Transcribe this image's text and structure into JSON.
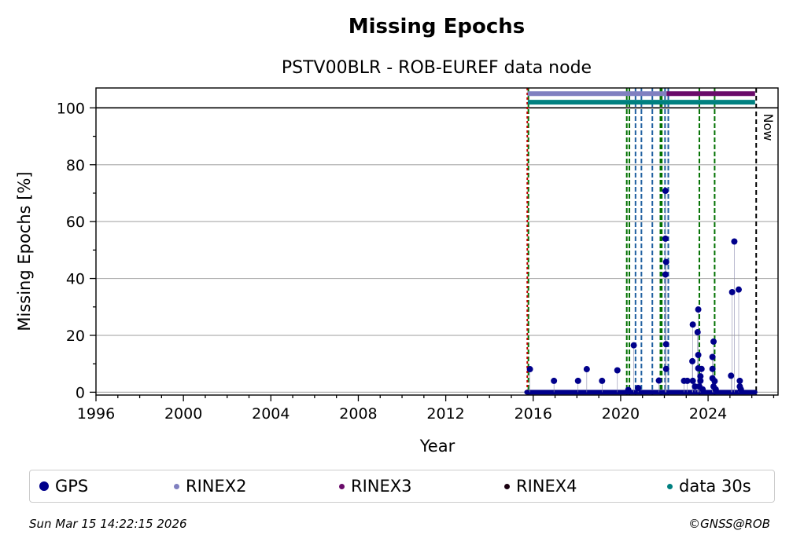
{
  "chart_data": {
    "type": "scatter",
    "title": "Missing Epochs",
    "subtitle": "PSTV00BLR - ROB-EUREF data node",
    "xlabel": "Year",
    "ylabel": "Missing Epochs [%]",
    "xlim": [
      1996,
      2027.2
    ],
    "ylim": [
      -1,
      107
    ],
    "x_ticks": [
      1996,
      2000,
      2004,
      2008,
      2012,
      2016,
      2020,
      2024
    ],
    "x_tick_labels": [
      "1996",
      "2000",
      "2004",
      "2008",
      "2012",
      "2016",
      "2020",
      "2024"
    ],
    "y_ticks": [
      0,
      20,
      40,
      60,
      80,
      100
    ],
    "y_tick_labels": [
      "0",
      "20",
      "40",
      "60",
      "80",
      "100"
    ],
    "grid": "horizontal",
    "legend_position": "below",
    "series": [
      {
        "name": "GPS",
        "color": "#00008b",
        "points": [
          [
            2015.85,
            8.1
          ],
          [
            2016.95,
            4.0
          ],
          [
            2018.05,
            4.0
          ],
          [
            2018.45,
            8.1
          ],
          [
            2019.15,
            4.0
          ],
          [
            2019.85,
            7.7
          ],
          [
            2020.35,
            0.8
          ],
          [
            2020.6,
            16.5
          ],
          [
            2020.8,
            1.5
          ],
          [
            2021.75,
            4.1
          ],
          [
            2022.05,
            70.8
          ],
          [
            2022.05,
            54.0
          ],
          [
            2022.08,
            45.8
          ],
          [
            2022.05,
            41.4
          ],
          [
            2022.08,
            16.9
          ],
          [
            2022.08,
            8.2
          ],
          [
            2022.9,
            4.0
          ],
          [
            2023.05,
            4.0
          ],
          [
            2023.3,
            23.8
          ],
          [
            2023.28,
            10.9
          ],
          [
            2023.3,
            4.0
          ],
          [
            2023.4,
            2.0
          ],
          [
            2023.55,
            29.1
          ],
          [
            2023.52,
            21.1
          ],
          [
            2023.55,
            13.1
          ],
          [
            2023.55,
            8.4
          ],
          [
            2023.7,
            8.2
          ],
          [
            2023.65,
            5.6
          ],
          [
            2023.65,
            4.0
          ],
          [
            2023.6,
            2.0
          ],
          [
            2023.75,
            1.0
          ],
          [
            2024.25,
            17.8
          ],
          [
            2024.2,
            12.4
          ],
          [
            2024.2,
            8.2
          ],
          [
            2024.2,
            4.9
          ],
          [
            2024.3,
            3.9
          ],
          [
            2024.25,
            2.0
          ],
          [
            2024.35,
            1.0
          ],
          [
            2025.05,
            5.8
          ],
          [
            2025.1,
            35.2
          ],
          [
            2025.2,
            53.0
          ],
          [
            2025.4,
            36.1
          ],
          [
            2025.45,
            4.0
          ],
          [
            2025.45,
            2.0
          ],
          [
            2025.5,
            1.0
          ]
        ],
        "baseline_range": [
          2015.7,
          2026.15
        ]
      },
      {
        "name": "RINEX2",
        "color": "#8080c0",
        "range": [
          2015.75,
          2022.1
        ],
        "level": 105
      },
      {
        "name": "RINEX3",
        "color": "#6a0b6a",
        "range": [
          2022.1,
          2026.15
        ],
        "level": 105
      },
      {
        "name": "RINEX4",
        "color": "#1a0010",
        "range": [],
        "level": 105
      },
      {
        "name": "data 30s",
        "color": "#008080",
        "range": [
          2015.75,
          2026.15
        ],
        "level": 102
      }
    ],
    "vertical_markers": {
      "red": [
        2015.73
      ],
      "green": [
        2015.78,
        2020.28,
        2020.4,
        2021.82,
        2021.88,
        2023.6,
        2024.3
      ],
      "blue": [
        2020.68,
        2020.95,
        2021.45,
        2022.03,
        2022.18
      ],
      "now": 2026.2
    },
    "now_label": "Now",
    "reference_line": 100
  },
  "legend": {
    "items": [
      {
        "label": "GPS",
        "color": "#00008b",
        "size": 12
      },
      {
        "label": "RINEX2",
        "color": "#8080c0",
        "size": 7
      },
      {
        "label": "RINEX3",
        "color": "#6a0b6a",
        "size": 7
      },
      {
        "label": "RINEX4",
        "color": "#1a0010",
        "size": 7
      },
      {
        "label": "data 30s",
        "color": "#008080",
        "size": 7
      }
    ]
  },
  "footer": {
    "timestamp": "Sun Mar 15 14:22:15 2026",
    "copyright": "©GNSS@ROB"
  }
}
